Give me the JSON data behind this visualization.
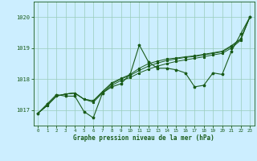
{
  "title": "Graphe pression niveau de la mer (hPa)",
  "background_color": "#cceeff",
  "line_color": "#1a5c1a",
  "grid_color": "#99ccbb",
  "xlim": [
    -0.5,
    23.5
  ],
  "ylim": [
    1016.5,
    1020.5
  ],
  "yticks": [
    1017,
    1018,
    1019,
    1020
  ],
  "xticks": [
    0,
    1,
    2,
    3,
    4,
    5,
    6,
    7,
    8,
    9,
    10,
    11,
    12,
    13,
    14,
    15,
    16,
    17,
    18,
    19,
    20,
    21,
    22,
    23
  ],
  "y_main": [
    1016.9,
    1017.2,
    1017.5,
    1017.45,
    1017.45,
    1016.95,
    1016.75,
    1017.55,
    1017.75,
    1017.85,
    1018.15,
    1019.1,
    1018.55,
    1018.35,
    1018.35,
    1018.3,
    1018.2,
    1017.75,
    1017.8,
    1018.2,
    1018.15,
    1018.9,
    1019.45,
    1020.0
  ],
  "y_trend1": [
    1016.9,
    1017.15,
    1017.45,
    1017.52,
    1017.55,
    1017.35,
    1017.25,
    1017.55,
    1017.8,
    1017.95,
    1018.05,
    1018.2,
    1018.32,
    1018.42,
    1018.5,
    1018.57,
    1018.62,
    1018.67,
    1018.72,
    1018.78,
    1018.83,
    1019.0,
    1019.25,
    1020.0
  ],
  "y_trend2": [
    1016.9,
    1017.15,
    1017.45,
    1017.52,
    1017.55,
    1017.35,
    1017.3,
    1017.58,
    1017.85,
    1018.0,
    1018.12,
    1018.28,
    1018.42,
    1018.52,
    1018.6,
    1018.65,
    1018.7,
    1018.73,
    1018.78,
    1018.83,
    1018.88,
    1019.05,
    1019.28,
    1020.0
  ],
  "y_trend3": [
    1016.9,
    1017.15,
    1017.45,
    1017.52,
    1017.55,
    1017.35,
    1017.3,
    1017.6,
    1017.88,
    1018.02,
    1018.15,
    1018.35,
    1018.5,
    1018.58,
    1018.65,
    1018.68,
    1018.72,
    1018.75,
    1018.8,
    1018.85,
    1018.9,
    1019.08,
    1019.3,
    1020.0
  ]
}
